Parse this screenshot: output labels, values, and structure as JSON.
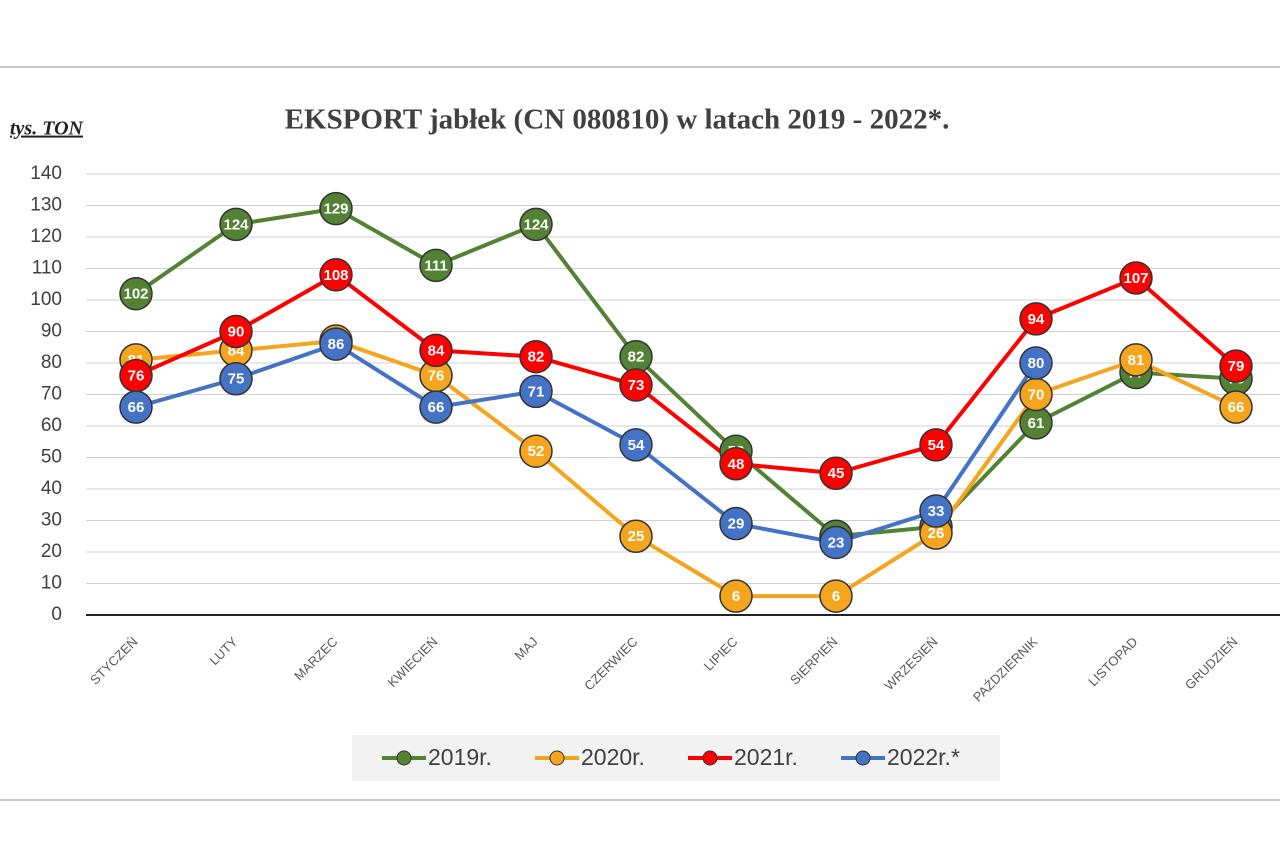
{
  "chart_data": {
    "type": "line",
    "title": "EKSPORT jabłek (CN 080810) w latach 2019 - 2022*.",
    "y_label": "tys. TON",
    "categories": [
      "STYCZEŃ",
      "LUTY",
      "MARZEC",
      "KWIECIEŃ",
      "MAJ",
      "CZERWIEC",
      "LIPIEC",
      "SIERPIEŃ",
      "WRZESIEŃ",
      "PAŹDZIERNIK",
      "LISTOPAD",
      "GRUDZIEŃ"
    ],
    "series": [
      {
        "name": "2019r.",
        "color": "#548235",
        "values": [
          102,
          124,
          129,
          111,
          124,
          82,
          52,
          25,
          28,
          61,
          77,
          75
        ]
      },
      {
        "name": "2020r.",
        "color": "#f5a41d",
        "values": [
          81,
          84,
          87,
          76,
          52,
          25,
          6,
          6,
          26,
          70,
          81,
          66
        ]
      },
      {
        "name": "2021r.",
        "color": "#ff0000",
        "values": [
          76,
          90,
          108,
          84,
          82,
          73,
          48,
          45,
          54,
          94,
          107,
          79
        ]
      },
      {
        "name": "2022r.*",
        "color": "#4472c4",
        "values": [
          66,
          75,
          86,
          66,
          71,
          54,
          29,
          23,
          33,
          80,
          null,
          null
        ]
      }
    ],
    "ylim": [
      0,
      140
    ],
    "yticks": [
      0,
      10,
      20,
      30,
      40,
      50,
      60,
      70,
      80,
      90,
      100,
      110,
      120,
      130,
      140
    ],
    "grid": true,
    "legend": "bottom"
  }
}
